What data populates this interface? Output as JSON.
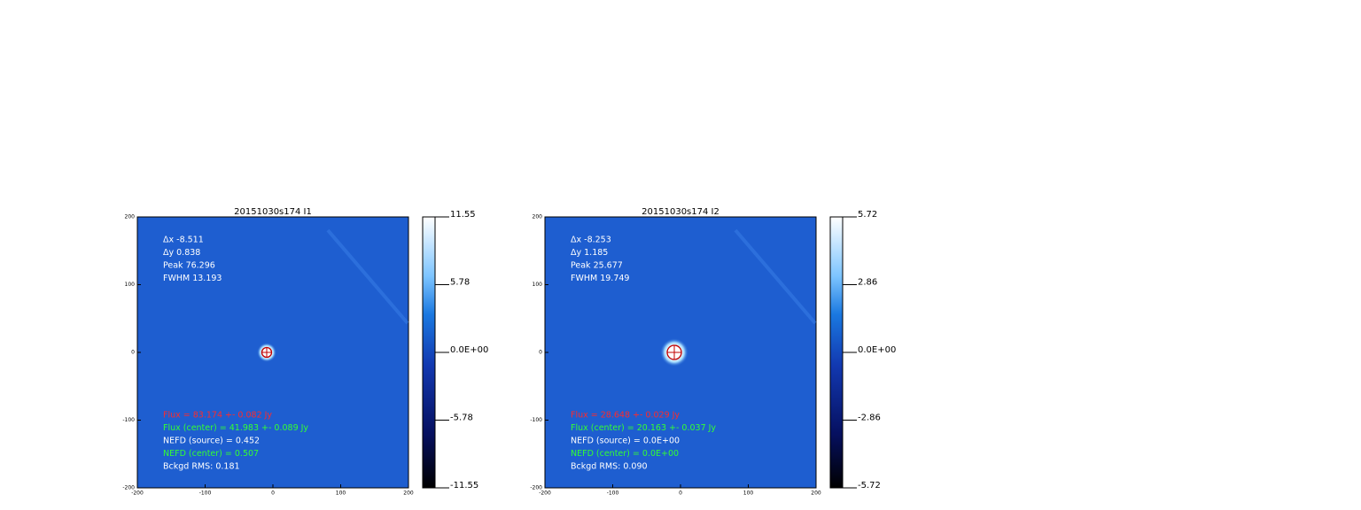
{
  "panels": [
    {
      "title": "20151030s174 I1",
      "annotations_top": [
        "Δx -8.511",
        "Δy 0.838",
        "Peak 76.296",
        "FWHM 13.193"
      ],
      "annotations_bottom": [
        {
          "text": "Flux = 83.174 +- 0.082 Jy",
          "color": "#ff2a2a"
        },
        {
          "text": "Flux (center) = 41.983 +- 0.089 Jy",
          "color": "#33ff33"
        },
        {
          "text": "NEFD (source) = 0.452",
          "color": "#ffffff"
        },
        {
          "text": "NEFD (center) = 0.507",
          "color": "#33ff33"
        },
        {
          "text": "Bckgd RMS: 0.181",
          "color": "#ffffff"
        }
      ],
      "colorbar_labels": [
        "11.55",
        "5.78",
        "0.0E+00",
        "-5.78",
        "-11.55"
      ],
      "y_tick_labels": [
        "200",
        "100",
        "0",
        "-100",
        "-200"
      ],
      "x_tick_labels": [
        "-200",
        "-100",
        "0",
        "100",
        "200"
      ]
    },
    {
      "title": "20151030s174 I2",
      "annotations_top": [
        "Δx -8.253",
        "Δy 1.185",
        "Peak 25.677",
        "FWHM 19.749"
      ],
      "annotations_bottom": [
        {
          "text": "Flux = 28.648 +- 0.029 Jy",
          "color": "#ff2a2a"
        },
        {
          "text": "Flux (center) = 20.163 +- 0.037 Jy",
          "color": "#33ff33"
        },
        {
          "text": "NEFD (source) = 0.0E+00",
          "color": "#ffffff"
        },
        {
          "text": "NEFD (center) = 0.0E+00",
          "color": "#33ff33"
        },
        {
          "text": "Bckgd RMS: 0.090",
          "color": "#ffffff"
        }
      ],
      "colorbar_labels": [
        "5.72",
        "2.86",
        "0.0E+00",
        "-2.86",
        "-5.72"
      ],
      "y_tick_labels": [
        "200",
        "100",
        "0",
        "-100",
        "-200"
      ],
      "x_tick_labels": [
        "-200",
        "-100",
        "0",
        "100",
        "200"
      ]
    }
  ]
}
